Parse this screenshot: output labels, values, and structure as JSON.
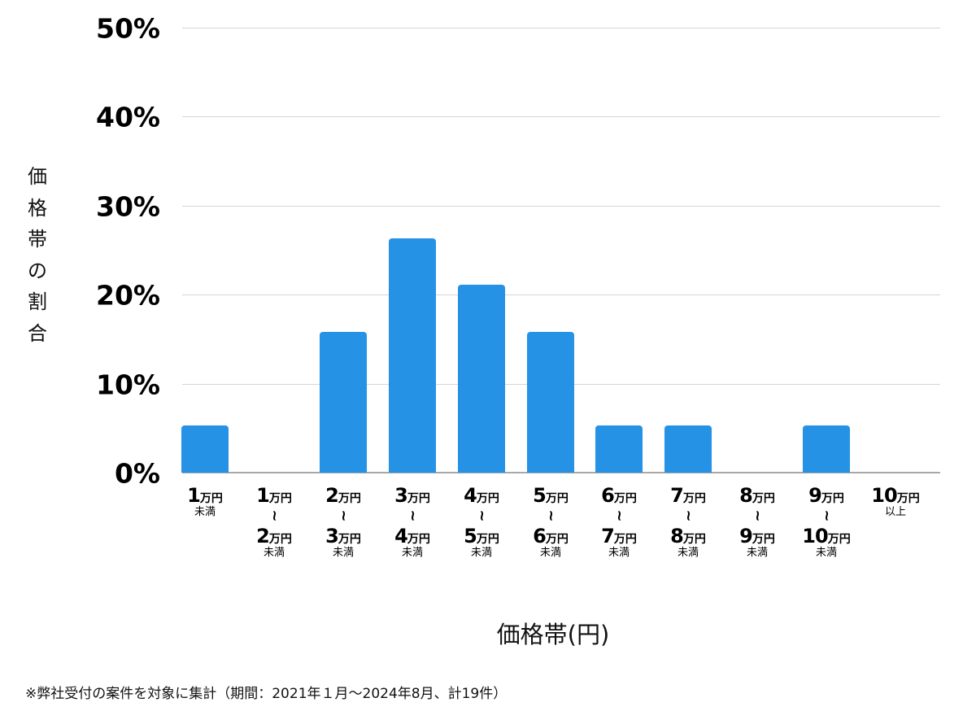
{
  "chart_data": {
    "type": "bar",
    "title": "",
    "xlabel": "価格帯(円)",
    "ylabel": "価格帯の割合",
    "ylim": [
      0,
      50
    ],
    "yticks": [
      "0%",
      "10%",
      "20%",
      "30%",
      "40%",
      "50%"
    ],
    "grid": true,
    "legend": null,
    "bar_color": "#2692e6",
    "categories": [
      "1万円未満",
      "1万円〜2万円未満",
      "2万円〜3万円未満",
      "3万円〜4万円未満",
      "4万円〜5万円未満",
      "5万円〜6万円未満",
      "6万円〜7万円未満",
      "7万円〜8万円未満",
      "8万円〜9万円未満",
      "9万円〜10万円未満",
      "10万円以上"
    ],
    "values": [
      5.3,
      0,
      15.8,
      26.3,
      21.1,
      15.8,
      5.3,
      5.3,
      0,
      5.3,
      0
    ],
    "annotations": [
      "※弊社受付の案件を対象に集計（期間：2021年１月〜2024年8月、計19件）"
    ]
  },
  "axis": {
    "ylabel_chars": [
      "価",
      "格",
      "帯",
      "の",
      "割",
      "合"
    ],
    "xtitle": "価格帯(円)",
    "ticks": [
      "50%",
      "40%",
      "30%",
      "20%",
      "10%",
      "0%"
    ]
  },
  "xlabels": [
    {
      "from": "1",
      "to": null,
      "suffix": "未満"
    },
    {
      "from": "1",
      "to": "2",
      "suffix": "未満"
    },
    {
      "from": "2",
      "to": "3",
      "suffix": "未満"
    },
    {
      "from": "3",
      "to": "4",
      "suffix": "未満"
    },
    {
      "from": "4",
      "to": "5",
      "suffix": "未満"
    },
    {
      "from": "5",
      "to": "6",
      "suffix": "未満"
    },
    {
      "from": "6",
      "to": "7",
      "suffix": "未満"
    },
    {
      "from": "7",
      "to": "8",
      "suffix": "未満"
    },
    {
      "from": "8",
      "to": "9",
      "suffix": "未満"
    },
    {
      "from": "9",
      "to": "10",
      "suffix": "未満"
    },
    {
      "from": "10",
      "to": null,
      "suffix": "以上"
    }
  ],
  "unit": "万円",
  "tilde": "~",
  "footnote": "※弊社受付の案件を対象に集計（期間：2021年１月〜2024年8月、計19件）"
}
